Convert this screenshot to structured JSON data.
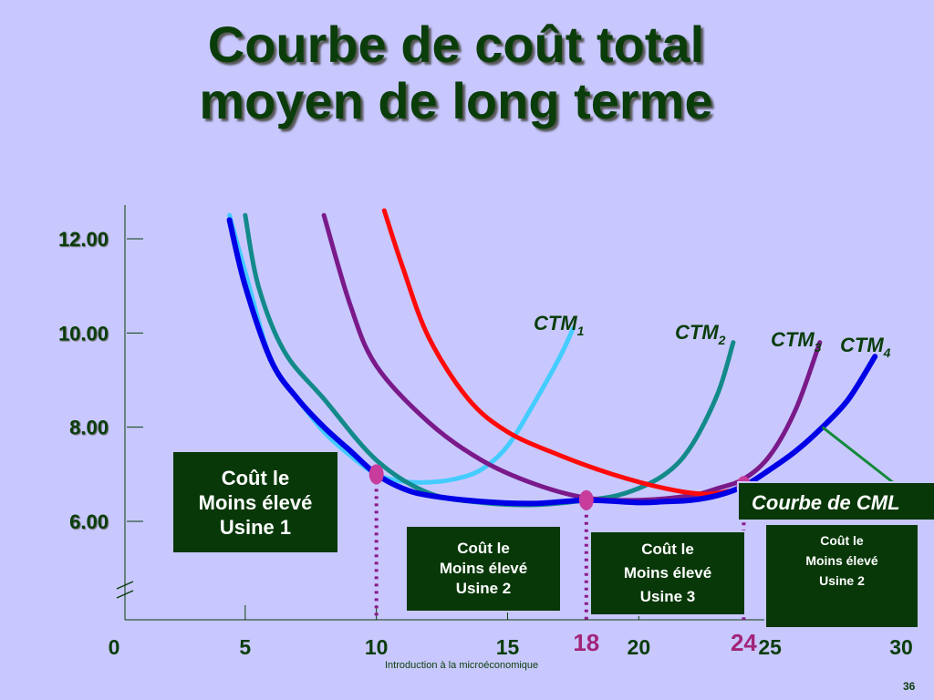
{
  "title": {
    "line1": "Courbe de coût total",
    "line2": "moyen de long terme"
  },
  "chart_data": {
    "type": "line",
    "title": "Courbe de coût total moyen de long terme",
    "xlabel": "",
    "ylabel": "",
    "x_ticks": [
      "0",
      "5",
      "10",
      "15",
      "20",
      "25",
      "30"
    ],
    "x_highlight_ticks": [
      "18",
      "24"
    ],
    "y_ticks": [
      "6.00",
      "8.00",
      "10.00",
      "12.00"
    ],
    "xlim": [
      0,
      30
    ],
    "ylim": [
      5,
      12.5
    ],
    "grid": false,
    "series": [
      {
        "name": "CTM1",
        "label_base": "CTM",
        "label_sub": "1",
        "color": "#44ccff",
        "x": [
          4.4,
          5.0,
          6.0,
          7.0,
          8.0,
          9.0,
          10.0,
          11.0,
          12.0,
          13.0,
          14.0,
          15.0,
          16.0,
          17.0,
          17.5
        ],
        "y": [
          12.5,
          11.3,
          9.4,
          8.6,
          7.9,
          7.4,
          7.0,
          6.85,
          6.83,
          6.9,
          7.1,
          7.6,
          8.5,
          9.5,
          10.1
        ]
      },
      {
        "name": "CTM2",
        "label_base": "CTM",
        "label_sub": "2",
        "color": "#138a8a",
        "x": [
          5.0,
          5.5,
          6.5,
          8.0,
          10.0,
          12.0,
          14.0,
          16.0,
          18.0,
          19.5,
          21.0,
          22.0,
          23.0,
          23.6
        ],
        "y": [
          12.5,
          11.0,
          9.6,
          8.6,
          7.3,
          6.6,
          6.4,
          6.35,
          6.45,
          6.6,
          7.0,
          7.6,
          8.7,
          9.8
        ]
      },
      {
        "name": "CTM3",
        "label_base": "CTM",
        "label_sub": "3",
        "color": "#7a1a8a",
        "x": [
          8.0,
          9.0,
          10.0,
          12.0,
          14.0,
          16.0,
          18.0,
          20.0,
          22.0,
          23.0,
          24.0,
          25.0,
          26.0,
          26.9
        ],
        "y": [
          12.5,
          10.6,
          9.3,
          8.1,
          7.3,
          6.8,
          6.5,
          6.45,
          6.55,
          6.7,
          6.9,
          7.4,
          8.4,
          9.8
        ]
      },
      {
        "name": "CTM4",
        "label_base": "CTM",
        "label_sub": "4",
        "color": "#ff0a0a",
        "x": [
          10.3,
          11.0,
          12.0,
          13.5,
          15.0,
          17.0,
          19.0,
          21.0,
          22.5,
          23.5,
          24.0
        ],
        "y": [
          12.6,
          11.4,
          9.9,
          8.6,
          7.9,
          7.4,
          7.0,
          6.7,
          6.58,
          6.65,
          6.75
        ]
      },
      {
        "name": "Courbe de CML",
        "color": "#0000e6",
        "x": [
          4.4,
          5.0,
          6.0,
          7.0,
          8.0,
          9.0,
          10.0,
          11.0,
          12.0,
          14.0,
          16.0,
          18.0,
          20.0,
          21.0,
          22.0,
          23.0,
          24.0,
          25.0,
          26.0,
          27.0,
          28.0,
          29.0
        ],
        "y": [
          12.4,
          11.0,
          9.4,
          8.6,
          8.0,
          7.5,
          7.0,
          6.7,
          6.55,
          6.42,
          6.38,
          6.45,
          6.4,
          6.42,
          6.45,
          6.55,
          6.75,
          7.1,
          7.5,
          8.0,
          8.6,
          9.5
        ]
      }
    ],
    "points": [
      {
        "x": 10,
        "y": 7.0,
        "color": "#c83c9c"
      },
      {
        "x": 18,
        "y": 6.45,
        "color": "#c83c9c"
      },
      {
        "x": 24,
        "y": 6.75,
        "color": "#c83c9c"
      }
    ],
    "annotations": [
      {
        "text": "Coût le Moins élevé Usine 1",
        "x": 10
      },
      {
        "text": "Coût le Moins élevé Usine 2",
        "x": 18
      },
      {
        "text": "Coût le Moins élevé Usine 3",
        "x": 18
      },
      {
        "text": "Coût le Moins élevé Usine 2",
        "x": 24
      },
      {
        "text": "Courbe de CML"
      }
    ]
  },
  "boxes": {
    "box1": {
      "line1": "Coût le",
      "line2": "Moins élevé",
      "line3": "Usine 1"
    },
    "box2": {
      "line1": "Coût le",
      "line2": "Moins élevé",
      "line3": "Usine 2"
    },
    "box3": {
      "line1": "Coût le",
      "line2": "Moins élevé",
      "line3": "Usine 3"
    },
    "box4": {
      "line1": "Coût le",
      "line2": "Moins élevé",
      "line3": "Usine 2"
    }
  },
  "cml_label": "Courbe de CML",
  "footer": "Introduction à la microéconomique",
  "page_number": "36"
}
